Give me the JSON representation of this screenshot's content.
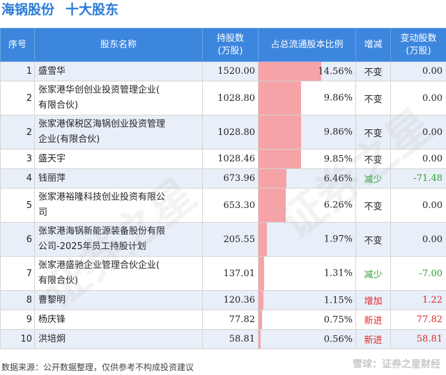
{
  "header": {
    "stock_name": "海锅股份",
    "title": "十大股东"
  },
  "columns": {
    "no": "序号",
    "name": "股东名称",
    "shares_l1": "持股数",
    "shares_l2": "(万股)",
    "ratio": "占总流通股本比例",
    "change": "增减",
    "chg_shares_l1": "变动股数",
    "chg_shares_l2": "(万股)"
  },
  "rows": [
    {
      "no": "1",
      "name_lines": [
        "盛雪华"
      ],
      "shares": "1520.00",
      "ratio": "14.56%",
      "ratio_value": 14.56,
      "change": "不变",
      "change_type": "same",
      "change_shares": "0.00"
    },
    {
      "no": "2",
      "name_lines": [
        "张家港华创创业投资管理企业(",
        "有限合伙)"
      ],
      "shares": "1028.80",
      "ratio": "9.86%",
      "ratio_value": 9.86,
      "change": "不变",
      "change_type": "same",
      "change_shares": "0.00"
    },
    {
      "no": "2",
      "name_lines": [
        "张家港保税区海锅创业投资管理",
        "企业(有限合伙)"
      ],
      "shares": "1028.80",
      "ratio": "9.86%",
      "ratio_value": 9.86,
      "change": "不变",
      "change_type": "same",
      "change_shares": "0.00"
    },
    {
      "no": "3",
      "name_lines": [
        "盛天宇"
      ],
      "shares": "1028.46",
      "ratio": "9.85%",
      "ratio_value": 9.85,
      "change": "不变",
      "change_type": "same",
      "change_shares": "0.00"
    },
    {
      "no": "4",
      "name_lines": [
        "钱丽萍"
      ],
      "shares": "673.96",
      "ratio": "6.46%",
      "ratio_value": 6.46,
      "change": "减少",
      "change_type": "down",
      "change_shares": "-71.48"
    },
    {
      "no": "5",
      "name_lines": [
        "张家港裕隆科技创业投资有限公",
        "司"
      ],
      "shares": "653.30",
      "ratio": "6.26%",
      "ratio_value": 6.26,
      "change": "不变",
      "change_type": "same",
      "change_shares": "0.00"
    },
    {
      "no": "6",
      "name_lines": [
        "张家港海锅新能源装备股份有限",
        "公司-2025年员工持股计划"
      ],
      "shares": "205.55",
      "ratio": "1.97%",
      "ratio_value": 1.97,
      "change": "不变",
      "change_type": "same",
      "change_shares": "0.00"
    },
    {
      "no": "7",
      "name_lines": [
        "张家港盛驰企业管理合伙企业(",
        "有限合伙)"
      ],
      "shares": "137.01",
      "ratio": "1.31%",
      "ratio_value": 1.31,
      "change": "减少",
      "change_type": "down",
      "change_shares": "-7.00"
    },
    {
      "no": "8",
      "name_lines": [
        "曹黎明"
      ],
      "shares": "120.36",
      "ratio": "1.15%",
      "ratio_value": 1.15,
      "change": "增加",
      "change_type": "up",
      "change_shares": "1.22"
    },
    {
      "no": "9",
      "name_lines": [
        "杨庆锋"
      ],
      "shares": "77.82",
      "ratio": "0.75%",
      "ratio_value": 0.75,
      "change": "新进",
      "change_type": "up",
      "change_shares": "77.82"
    },
    {
      "no": "10",
      "name_lines": [
        "洪培炯"
      ],
      "shares": "58.81",
      "ratio": "0.56%",
      "ratio_value": 0.56,
      "change": "新进",
      "change_type": "up",
      "change_shares": "58.81"
    }
  ],
  "ratio_max": 14.56,
  "colors": {
    "header_bg": "#3d86de",
    "title": "#2a7ad5",
    "bar": "#f6a3a8",
    "up": "#e0262b",
    "down": "#2e9e35",
    "row_alt": "#e9eff8"
  },
  "footer": {
    "source": "数据来源：公开数据整理，仅供参考不构成投资建议",
    "brand": "雪球：证券之星财经"
  }
}
